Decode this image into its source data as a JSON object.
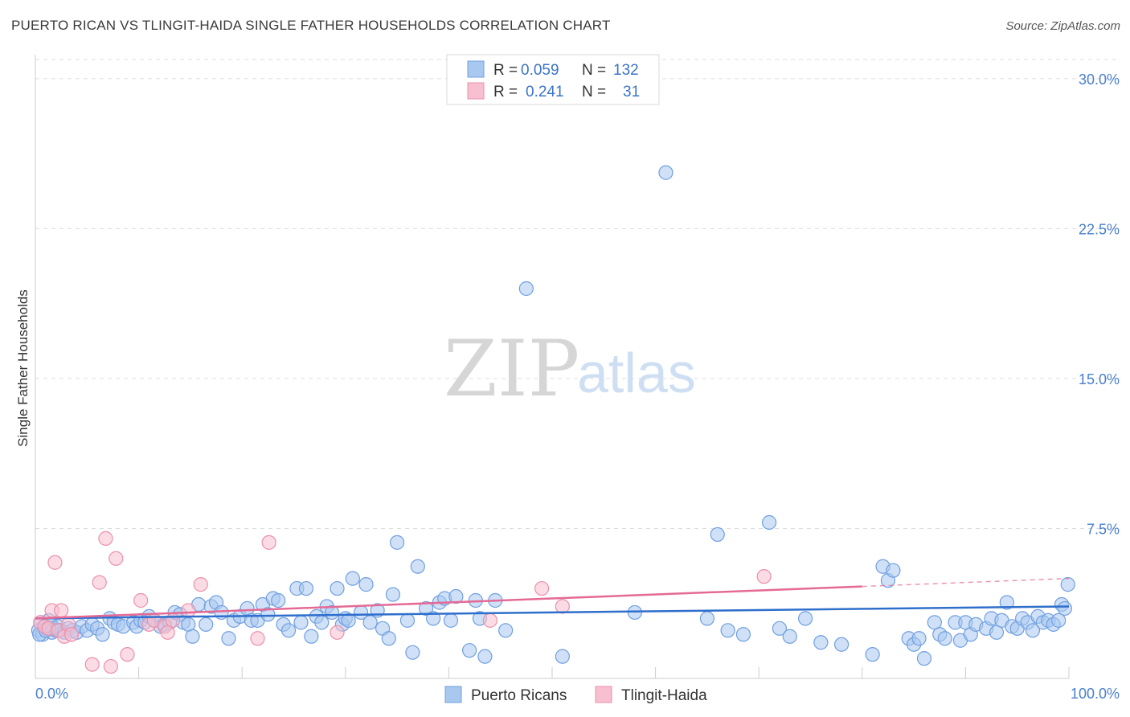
{
  "title": "PUERTO RICAN VS TLINGIT-HAIDA SINGLE FATHER HOUSEHOLDS CORRELATION CHART",
  "source": "Source: ZipAtlas.com",
  "watermark": {
    "zip": "ZIP",
    "atlas": "atlas"
  },
  "colors": {
    "blue_fill": "#a9c8f0",
    "blue_stroke": "#6f9fe0",
    "blue_line": "#2f6fcc",
    "pink_fill": "#f7bfd0",
    "pink_stroke": "#ec8fab",
    "pink_line": "#e46a95",
    "grid": "#dddddd",
    "axis_text": "#4a7fd0"
  },
  "legend": {
    "rows": [
      {
        "r_label": "R =",
        "r_value": "0.059",
        "n_label": "N =",
        "n_value": "132"
      },
      {
        "r_label": "R =",
        "r_value": "0.241",
        "n_label": "N =",
        "n_value": "31"
      }
    ]
  },
  "chart_data": {
    "type": "scatter",
    "title": "PUERTO RICAN VS TLINGIT-HAIDA SINGLE FATHER HOUSEHOLDS CORRELATION CHART",
    "xlabel": "",
    "ylabel": "Single Father Households",
    "xlim": [
      0,
      100
    ],
    "ylim": [
      0,
      31.2
    ],
    "x_tick_labels": [
      "0.0%",
      "100.0%"
    ],
    "y_ticks": [
      7.5,
      15.0,
      22.5,
      30.0
    ],
    "y_tick_labels": [
      "7.5%",
      "15.0%",
      "22.5%",
      "30.0%"
    ],
    "grid": true,
    "legend_position": "bottom",
    "series": [
      {
        "name": "Puerto Ricans",
        "r": 0.059,
        "n": 132,
        "trend": {
          "x": [
            0,
            100
          ],
          "y": [
            3.0,
            3.6
          ]
        },
        "points": [
          [
            0.3,
            2.4
          ],
          [
            0.5,
            2.8
          ],
          [
            0.7,
            2.2
          ],
          [
            0.9,
            2.6
          ],
          [
            1.1,
            2.5
          ],
          [
            1.3,
            2.9
          ],
          [
            1.5,
            2.7
          ],
          [
            1.6,
            2.3
          ],
          [
            1.8,
            2.5
          ],
          [
            2.0,
            2.4
          ],
          [
            2.2,
            2.6
          ],
          [
            2.4,
            2.4
          ],
          [
            2.8,
            2.3
          ],
          [
            3.2,
            2.5
          ],
          [
            3.6,
            2.4
          ],
          [
            4.0,
            2.3
          ],
          [
            4.5,
            2.6
          ],
          [
            5.0,
            2.4
          ],
          [
            5.5,
            2.7
          ],
          [
            6.0,
            2.5
          ],
          [
            6.5,
            2.2
          ],
          [
            7.2,
            3.0
          ],
          [
            7.6,
            2.8
          ],
          [
            8.0,
            2.7
          ],
          [
            8.5,
            2.6
          ],
          [
            9.5,
            2.8
          ],
          [
            9.8,
            2.6
          ],
          [
            10.2,
            2.9
          ],
          [
            10.6,
            2.8
          ],
          [
            11.0,
            3.1
          ],
          [
            11.5,
            2.9
          ],
          [
            12.1,
            2.6
          ],
          [
            12.5,
            2.7
          ],
          [
            13.0,
            2.8
          ],
          [
            13.5,
            3.3
          ],
          [
            14.0,
            3.2
          ],
          [
            14.3,
            2.8
          ],
          [
            14.8,
            2.7
          ],
          [
            15.2,
            2.1
          ],
          [
            15.8,
            3.7
          ],
          [
            16.5,
            2.7
          ],
          [
            17.0,
            3.6
          ],
          [
            17.5,
            3.8
          ],
          [
            18.0,
            3.3
          ],
          [
            18.7,
            2.0
          ],
          [
            19.2,
            2.9
          ],
          [
            19.8,
            3.1
          ],
          [
            20.5,
            3.5
          ],
          [
            20.9,
            2.9
          ],
          [
            21.5,
            2.9
          ],
          [
            22.0,
            3.7
          ],
          [
            22.5,
            3.2
          ],
          [
            23.0,
            4.0
          ],
          [
            23.5,
            3.9
          ],
          [
            24.0,
            2.7
          ],
          [
            24.5,
            2.4
          ],
          [
            25.3,
            4.5
          ],
          [
            25.7,
            2.8
          ],
          [
            26.2,
            4.5
          ],
          [
            26.7,
            2.1
          ],
          [
            27.2,
            3.1
          ],
          [
            27.7,
            2.8
          ],
          [
            28.2,
            3.6
          ],
          [
            28.7,
            3.3
          ],
          [
            29.2,
            4.5
          ],
          [
            29.7,
            2.7
          ],
          [
            30.0,
            3.0
          ],
          [
            30.3,
            2.9
          ],
          [
            30.7,
            5.0
          ],
          [
            31.5,
            3.3
          ],
          [
            32.0,
            4.7
          ],
          [
            32.4,
            2.8
          ],
          [
            33.1,
            3.4
          ],
          [
            33.6,
            2.5
          ],
          [
            34.2,
            2.0
          ],
          [
            34.6,
            4.2
          ],
          [
            35.0,
            6.8
          ],
          [
            36.0,
            2.9
          ],
          [
            36.5,
            1.3
          ],
          [
            37.0,
            5.6
          ],
          [
            37.8,
            3.5
          ],
          [
            38.5,
            3.0
          ],
          [
            39.1,
            3.8
          ],
          [
            39.6,
            4.0
          ],
          [
            40.2,
            2.9
          ],
          [
            40.7,
            4.1
          ],
          [
            42.0,
            1.4
          ],
          [
            42.6,
            3.9
          ],
          [
            43.0,
            3.0
          ],
          [
            43.5,
            1.1
          ],
          [
            44.5,
            3.9
          ],
          [
            45.5,
            2.4
          ],
          [
            47.5,
            19.5
          ],
          [
            51.0,
            1.1
          ],
          [
            58.0,
            3.3
          ],
          [
            61.0,
            25.3
          ],
          [
            65.0,
            3.0
          ],
          [
            66.0,
            7.2
          ],
          [
            67.0,
            2.4
          ],
          [
            68.5,
            2.2
          ],
          [
            71.0,
            7.8
          ],
          [
            72.0,
            2.5
          ],
          [
            73.0,
            2.1
          ],
          [
            74.5,
            3.0
          ],
          [
            76.0,
            1.8
          ],
          [
            78.0,
            1.7
          ],
          [
            81.0,
            1.2
          ],
          [
            82.0,
            5.6
          ],
          [
            82.5,
            4.9
          ],
          [
            83.0,
            5.4
          ],
          [
            84.5,
            2.0
          ],
          [
            85.0,
            1.7
          ],
          [
            85.5,
            2.0
          ],
          [
            86.0,
            1.0
          ],
          [
            87.0,
            2.8
          ],
          [
            87.5,
            2.2
          ],
          [
            88.0,
            2.0
          ],
          [
            89.0,
            2.8
          ],
          [
            89.5,
            1.9
          ],
          [
            90.0,
            2.8
          ],
          [
            90.5,
            2.2
          ],
          [
            91.0,
            2.7
          ],
          [
            92.0,
            2.5
          ],
          [
            92.5,
            3.0
          ],
          [
            93.0,
            2.3
          ],
          [
            93.5,
            2.9
          ],
          [
            94.0,
            3.8
          ],
          [
            94.5,
            2.6
          ],
          [
            95.0,
            2.5
          ],
          [
            95.5,
            3.0
          ],
          [
            96.0,
            2.8
          ],
          [
            96.5,
            2.4
          ],
          [
            97.0,
            3.1
          ],
          [
            97.5,
            2.8
          ],
          [
            98.0,
            2.9
          ],
          [
            98.5,
            2.7
          ],
          [
            99.0,
            2.9
          ],
          [
            99.3,
            3.7
          ],
          [
            99.6,
            3.5
          ],
          [
            99.9,
            4.7
          ],
          [
            0.4,
            2.2
          ],
          [
            1.0,
            2.4
          ]
        ]
      },
      {
        "name": "Tlingit-Haida",
        "r": 0.241,
        "n": 31,
        "trend": {
          "x": [
            0,
            80
          ],
          "y": [
            3.0,
            4.6
          ]
        },
        "trend_extension": {
          "x": [
            80,
            100
          ],
          "y": [
            4.6,
            5.0
          ]
        },
        "points": [
          [
            0.5,
            2.8
          ],
          [
            0.9,
            2.6
          ],
          [
            1.3,
            2.5
          ],
          [
            1.6,
            3.4
          ],
          [
            1.9,
            5.8
          ],
          [
            2.2,
            2.4
          ],
          [
            2.5,
            3.4
          ],
          [
            2.8,
            2.1
          ],
          [
            3.2,
            2.7
          ],
          [
            3.5,
            2.2
          ],
          [
            5.5,
            0.7
          ],
          [
            6.2,
            4.8
          ],
          [
            6.8,
            7.0
          ],
          [
            7.3,
            0.6
          ],
          [
            7.8,
            6.0
          ],
          [
            8.9,
            1.2
          ],
          [
            10.2,
            3.9
          ],
          [
            11.0,
            2.7
          ],
          [
            11.5,
            2.9
          ],
          [
            12.5,
            2.6
          ],
          [
            12.8,
            2.3
          ],
          [
            13.3,
            2.9
          ],
          [
            14.8,
            3.4
          ],
          [
            16.0,
            4.7
          ],
          [
            21.5,
            2.0
          ],
          [
            22.6,
            6.8
          ],
          [
            29.2,
            2.3
          ],
          [
            44.0,
            2.9
          ],
          [
            49.0,
            4.5
          ],
          [
            51.0,
            3.6
          ],
          [
            70.5,
            5.1
          ]
        ]
      }
    ]
  },
  "bottom_legend": [
    {
      "label": "Puerto Ricans"
    },
    {
      "label": "Tlingit-Haida"
    }
  ]
}
